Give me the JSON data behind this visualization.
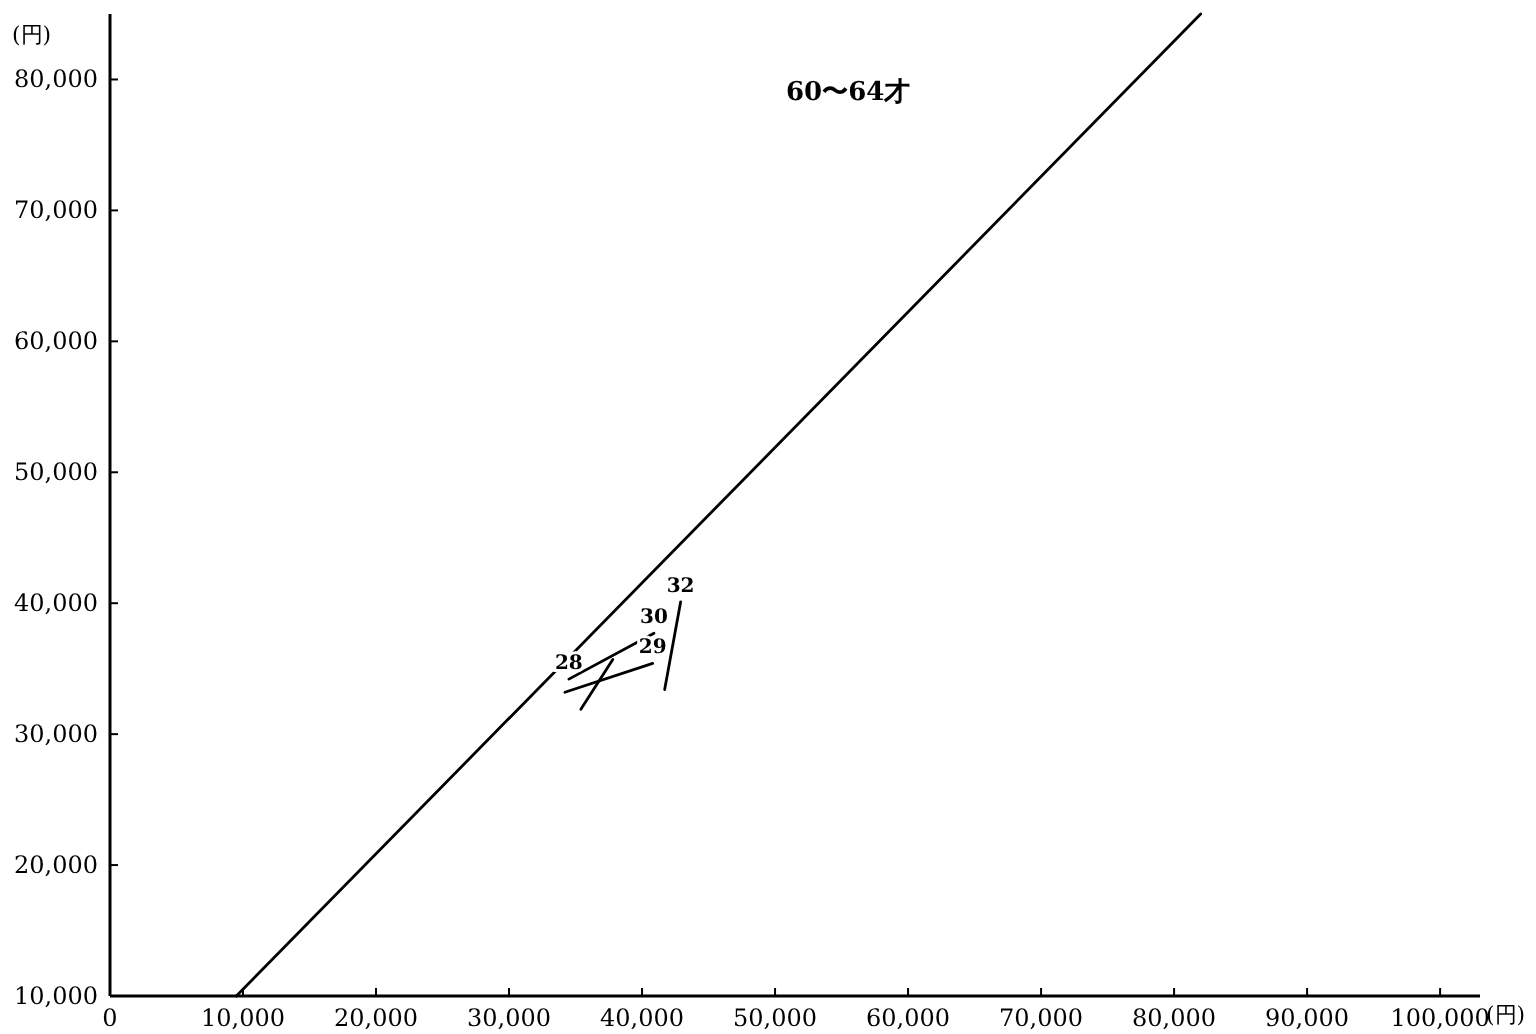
{
  "chart_data": {
    "type": "line",
    "title": "60〜64才",
    "xlabel": "(円)",
    "ylabel": "(円)",
    "xlim": [
      0,
      103000
    ],
    "ylim": [
      10000,
      85000
    ],
    "xticks": [
      {
        "value": 0,
        "label": "0"
      },
      {
        "value": 10000,
        "label": "10,000"
      },
      {
        "value": 20000,
        "label": "20,000"
      },
      {
        "value": 30000,
        "label": "30,000"
      },
      {
        "value": 40000,
        "label": "40,000"
      },
      {
        "value": 50000,
        "label": "50,000"
      },
      {
        "value": 60000,
        "label": "60,000"
      },
      {
        "value": 70000,
        "label": "70,000"
      },
      {
        "value": 80000,
        "label": "80,000"
      },
      {
        "value": 90000,
        "label": "90,000"
      },
      {
        "value": 100000,
        "label": "100,000"
      }
    ],
    "yticks": [
      {
        "value": 10000,
        "label": "10,000"
      },
      {
        "value": 20000,
        "label": "20,000"
      },
      {
        "value": 30000,
        "label": "30,000"
      },
      {
        "value": 40000,
        "label": "40,000"
      },
      {
        "value": 50000,
        "label": "50,000"
      },
      {
        "value": 60000,
        "label": "60,000"
      },
      {
        "value": 70000,
        "label": "70,000"
      },
      {
        "value": 80000,
        "label": "80,000"
      }
    ],
    "series": [
      {
        "color": "#000000",
        "x": [
          9500,
          82000
        ],
        "values": [
          10000,
          85000
        ]
      },
      {
        "color": "#000000",
        "x": [
          34200,
          40800
        ],
        "values": [
          33200,
          35400
        ]
      },
      {
        "color": "#000000",
        "x": [
          34500,
          40900
        ],
        "values": [
          34200,
          37700
        ]
      },
      {
        "color": "#000000",
        "x": [
          35400,
          37800
        ],
        "values": [
          31900,
          35700
        ]
      },
      {
        "color": "#000000",
        "x": [
          41700,
          42900
        ],
        "values": [
          33400,
          40100
        ]
      }
    ],
    "annotations": [
      {
        "text": "28",
        "x": 34500,
        "y": 34200
      },
      {
        "text": "29",
        "x": 40800,
        "y": 35400
      },
      {
        "text": "30",
        "x": 40900,
        "y": 37700
      },
      {
        "text": "32",
        "x": 42900,
        "y": 40100
      }
    ]
  }
}
